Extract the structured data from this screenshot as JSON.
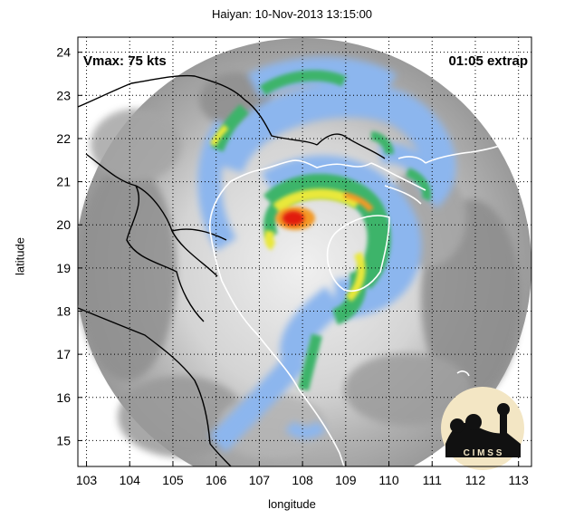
{
  "title": "Haiyan: 10-Nov-2013 13:15:00",
  "xlabel": "longitude",
  "ylabel": "latitude",
  "vmax_label": "Vmax: 75 kts",
  "extrap_label": "01:05 extrap",
  "logo_text": "C I M S S",
  "x_ticks": [
    "103",
    "104",
    "105",
    "106",
    "107",
    "108",
    "109",
    "110",
    "111",
    "112",
    "113"
  ],
  "y_ticks": [
    "24",
    "23",
    "22",
    "21",
    "20",
    "19",
    "18",
    "17",
    "16",
    "15"
  ],
  "map": {
    "lon_range": [
      102.8,
      113.3
    ],
    "lat_range": [
      14.4,
      24.35
    ],
    "storm_center": {
      "lon": 107.9,
      "lat": 20.0
    },
    "colors": {
      "gray_light": "#d8d8d8",
      "gray_dark": "#8c8c8c",
      "blue": "#88b4ec",
      "green": "#3fb66b",
      "yellow": "#e9e83a",
      "orange": "#f39a28",
      "red": "#e11d10",
      "coast": "#ffffff",
      "border": "#000000"
    }
  }
}
